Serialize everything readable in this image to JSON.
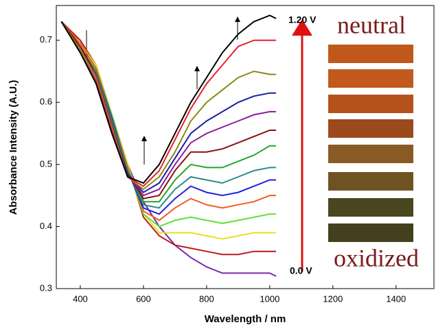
{
  "chart_data": {
    "type": "line",
    "x_label": "Wavelength / nm",
    "y_label": "Absorbance Intensity (A.U.)",
    "annotations": {
      "high_voltage": "1.20 V",
      "low_voltage": "0.0 V",
      "top_state": "neutral",
      "bottom_state": "oxidized"
    },
    "x": [
      340,
      400,
      450,
      500,
      550,
      600,
      650,
      700,
      750,
      800,
      850,
      900,
      950,
      1000,
      1020
    ],
    "xlim": [
      324,
      1520
    ],
    "xticks": [
      400,
      600,
      800,
      1000,
      1200,
      1400
    ],
    "ylim": [
      0.3,
      0.756
    ],
    "yticks": [
      0.3,
      0.4,
      0.5,
      0.6,
      0.7
    ],
    "series": [
      {
        "color": "#000000",
        "values": [
          0.73,
          0.68,
          0.63,
          0.55,
          0.48,
          0.47,
          0.5,
          0.55,
          0.6,
          0.64,
          0.68,
          0.71,
          0.73,
          0.74,
          0.735
        ]
      },
      {
        "color": "#e8202a",
        "values": [
          0.73,
          0.68,
          0.635,
          0.555,
          0.48,
          0.465,
          0.49,
          0.54,
          0.59,
          0.63,
          0.66,
          0.69,
          0.7,
          0.7,
          0.7
        ]
      },
      {
        "color": "#8a8a10",
        "values": [
          0.73,
          0.685,
          0.64,
          0.56,
          0.48,
          0.46,
          0.48,
          0.52,
          0.57,
          0.6,
          0.62,
          0.64,
          0.65,
          0.645,
          0.645
        ]
      },
      {
        "color": "#1c1ca8",
        "values": [
          0.73,
          0.685,
          0.64,
          0.56,
          0.485,
          0.455,
          0.47,
          0.51,
          0.55,
          0.57,
          0.585,
          0.6,
          0.61,
          0.615,
          0.615
        ]
      },
      {
        "color": "#8a1a9a",
        "values": [
          0.73,
          0.685,
          0.645,
          0.565,
          0.485,
          0.45,
          0.46,
          0.5,
          0.535,
          0.55,
          0.56,
          0.57,
          0.58,
          0.585,
          0.585
        ]
      },
      {
        "color": "#8a1010",
        "values": [
          0.73,
          0.69,
          0.645,
          0.565,
          0.485,
          0.445,
          0.45,
          0.49,
          0.52,
          0.52,
          0.525,
          0.535,
          0.545,
          0.555,
          0.555
        ]
      },
      {
        "color": "#22a822",
        "values": [
          0.73,
          0.69,
          0.65,
          0.57,
          0.49,
          0.44,
          0.44,
          0.475,
          0.5,
          0.495,
          0.495,
          0.505,
          0.515,
          0.53,
          0.53
        ]
      },
      {
        "color": "#2a8a8a",
        "values": [
          0.73,
          0.69,
          0.65,
          0.57,
          0.49,
          0.435,
          0.43,
          0.46,
          0.48,
          0.475,
          0.47,
          0.48,
          0.49,
          0.495,
          0.495
        ]
      },
      {
        "color": "#2020e0",
        "values": [
          0.73,
          0.69,
          0.65,
          0.575,
          0.49,
          0.43,
          0.42,
          0.445,
          0.465,
          0.455,
          0.45,
          0.455,
          0.465,
          0.475,
          0.475
        ]
      },
      {
        "color": "#f05a20",
        "values": [
          0.73,
          0.695,
          0.655,
          0.575,
          0.495,
          0.425,
          0.41,
          0.43,
          0.445,
          0.435,
          0.43,
          0.435,
          0.44,
          0.45,
          0.45
        ]
      },
      {
        "color": "#60e030",
        "values": [
          0.73,
          0.695,
          0.655,
          0.58,
          0.495,
          0.42,
          0.4,
          0.41,
          0.415,
          0.41,
          0.405,
          0.41,
          0.415,
          0.42,
          0.42
        ]
      },
      {
        "color": "#e8e020",
        "values": [
          0.73,
          0.695,
          0.66,
          0.58,
          0.5,
          0.42,
          0.39,
          0.39,
          0.39,
          0.385,
          0.38,
          0.385,
          0.39,
          0.39,
          0.39
        ]
      },
      {
        "color": "#c01818",
        "values": [
          0.73,
          0.7,
          0.66,
          0.58,
          0.5,
          0.415,
          0.385,
          0.37,
          0.365,
          0.36,
          0.355,
          0.355,
          0.36,
          0.36,
          0.36
        ]
      },
      {
        "color": "#7a28b0",
        "values": [
          0.73,
          0.7,
          0.66,
          0.58,
          0.5,
          0.44,
          0.4,
          0.37,
          0.35,
          0.335,
          0.325,
          0.325,
          0.325,
          0.325,
          0.32
        ]
      }
    ]
  }
}
